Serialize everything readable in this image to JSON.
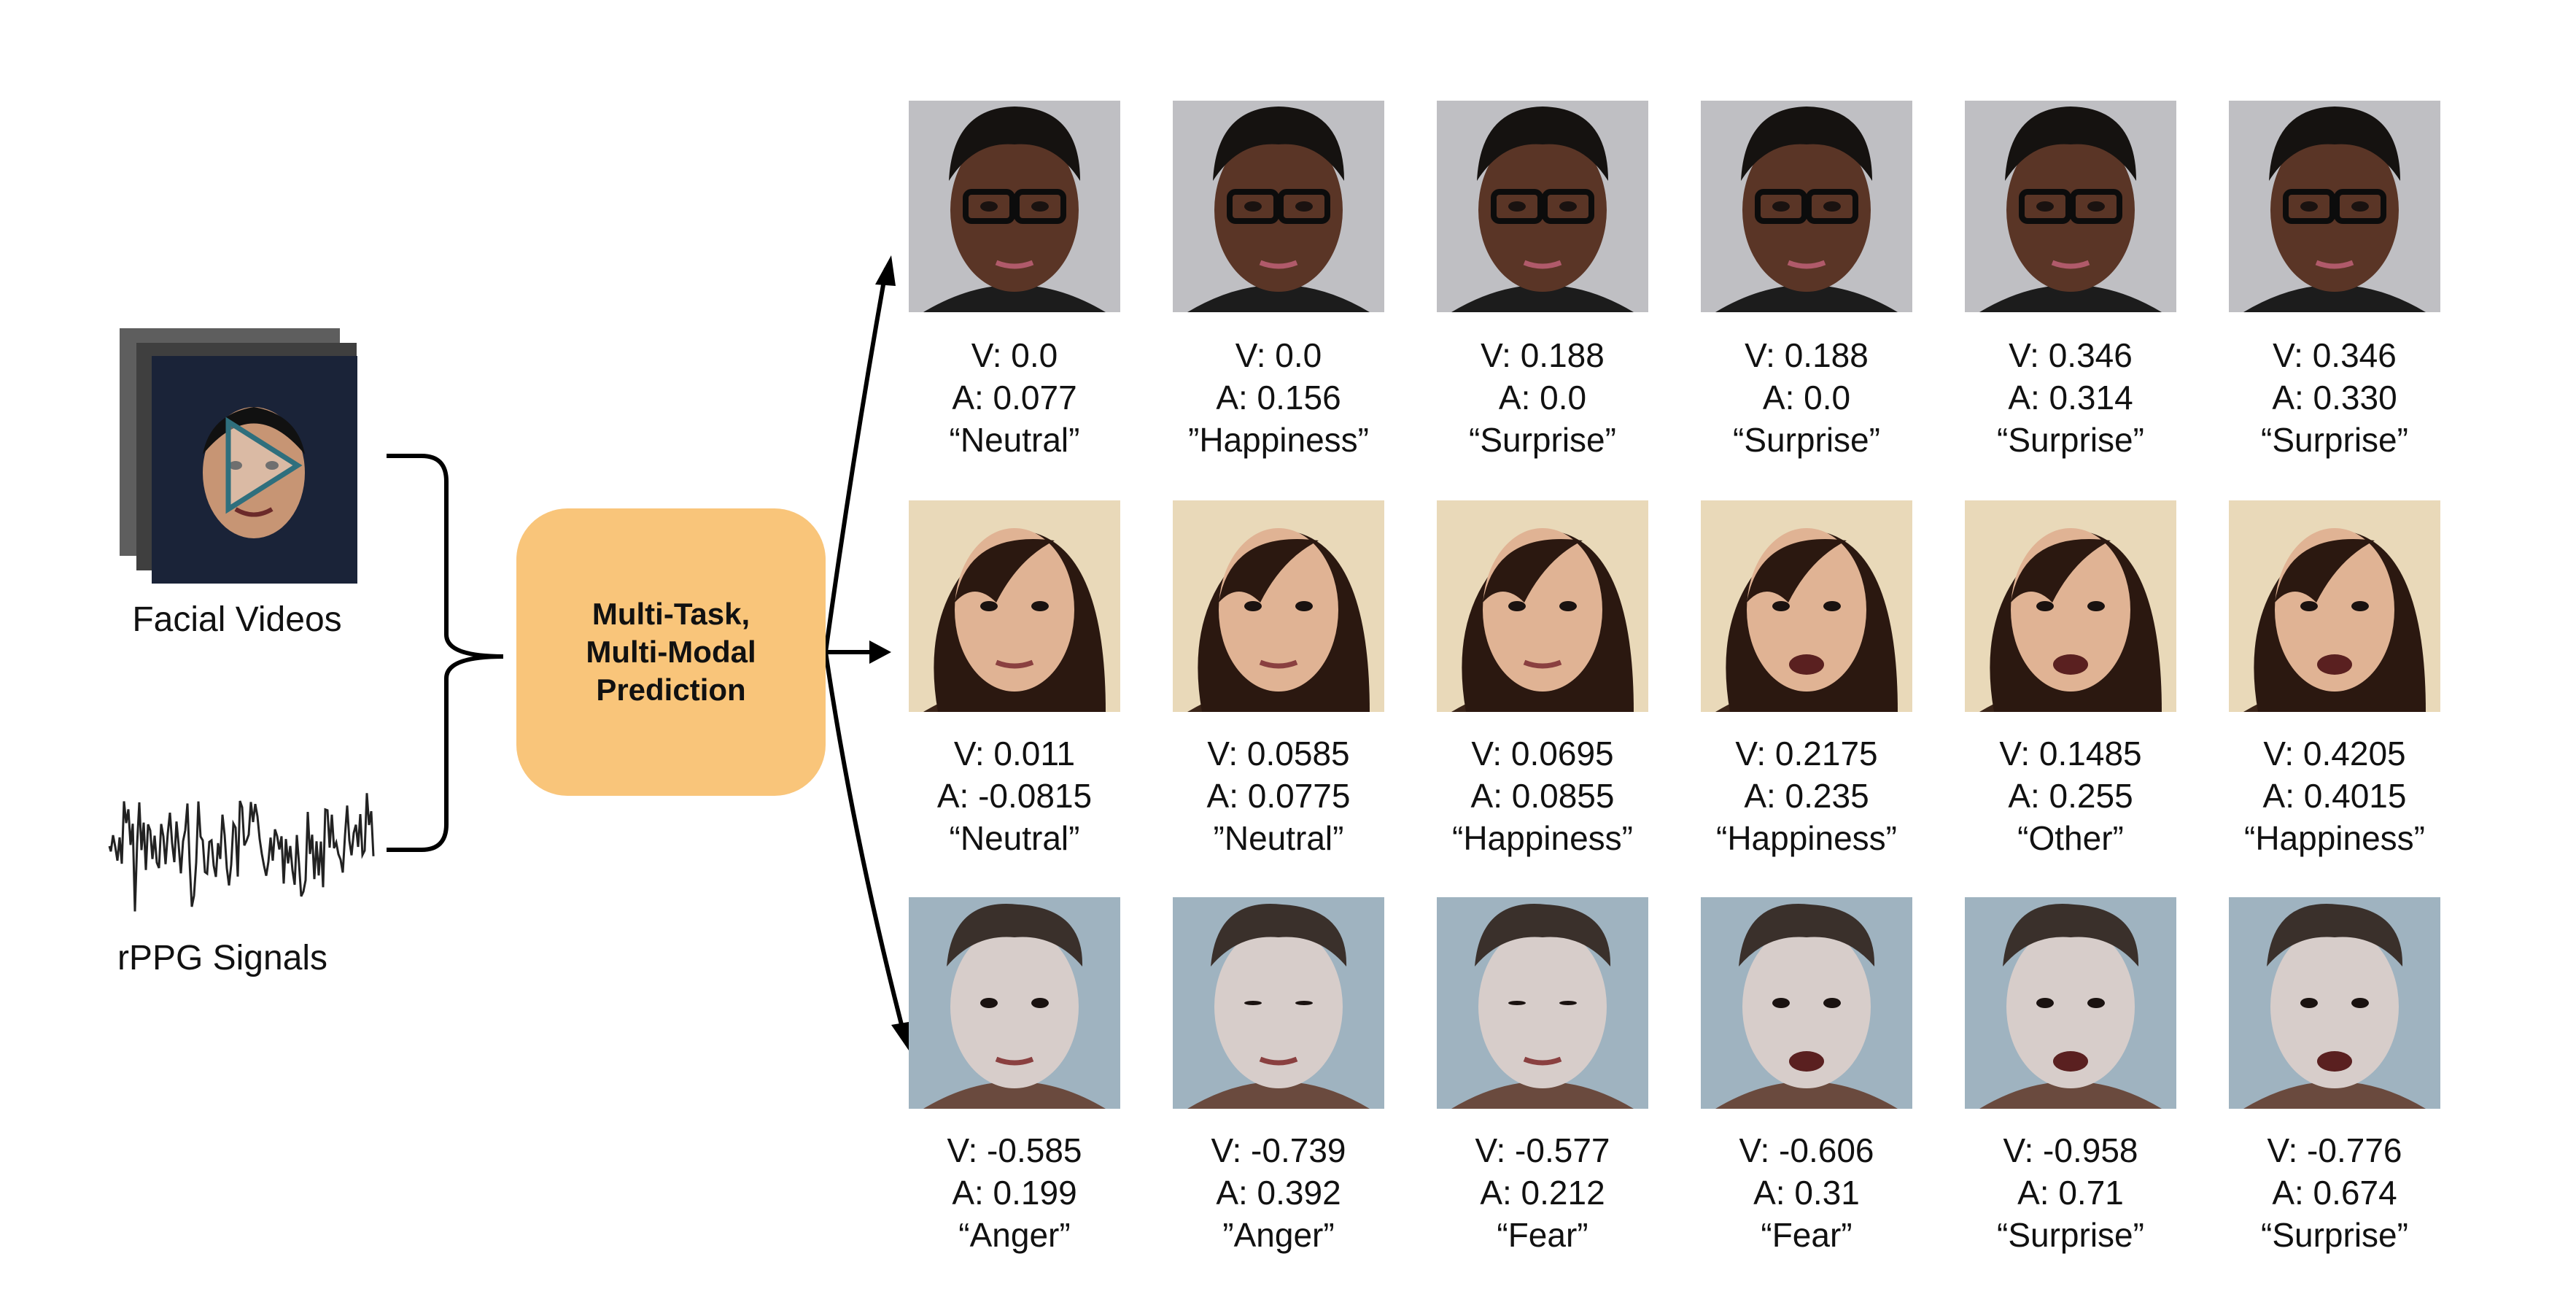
{
  "inputs": {
    "video_label": "Facial Videos",
    "signal_label": "rPPG Signals"
  },
  "center_label": "Multi-Task,\nMulti-Modal\nPrediction",
  "colors": {
    "center_box": "#f9c57a",
    "arrow": "#000000"
  },
  "rows": [
    {
      "subject": "man-with-glasses",
      "background": "#bfbfc3",
      "skin": "#5a3526",
      "hair": "#151210",
      "cells": [
        {
          "v": "V: 0.0",
          "a": "A: 0.077",
          "label": "“Neutral”"
        },
        {
          "v": "V: 0.0",
          "a": "A: 0.156",
          "label": "”Happiness”"
        },
        {
          "v": "V: 0.188",
          "a": "A: 0.0",
          "label": "“Surprise”"
        },
        {
          "v": "V: 0.188",
          "a": "A: 0.0",
          "label": "“Surprise”"
        },
        {
          "v": "V: 0.346",
          "a": "A: 0.314",
          "label": "“Surprise”"
        },
        {
          "v": "V: 0.346",
          "a": "A: 0.330",
          "label": "“Surprise”"
        }
      ]
    },
    {
      "subject": "woman-dark-hair",
      "background": "#e9d9b9",
      "skin": "#e0b394",
      "hair": "#2b1810",
      "cells": [
        {
          "v": "V: 0.011",
          "a": "A: -0.0815",
          "label": "“Neutral”"
        },
        {
          "v": "V: 0.0585",
          "a": "A: 0.0775",
          "label": "”Neutral”"
        },
        {
          "v": "V: 0.0695",
          "a": "A: 0.0855",
          "label": "“Happiness”"
        },
        {
          "v": "V: 0.2175",
          "a": "A: 0.235",
          "label": "“Happiness”"
        },
        {
          "v": "V: 0.1485",
          "a": "A: 0.255",
          "label": "“Other”"
        },
        {
          "v": "V: 0.4205",
          "a": "A: 0.4015",
          "label": "“Happiness”"
        }
      ]
    },
    {
      "subject": "young-man",
      "background": "#9fb3c0",
      "skin": "#d7cdca",
      "hair": "#3a302b",
      "cells": [
        {
          "v": "V: -0.585",
          "a": "A: 0.199",
          "label": "“Anger”"
        },
        {
          "v": "V: -0.739",
          "a": "A: 0.392",
          "label": "”Anger”"
        },
        {
          "v": "V: -0.577",
          "a": "A: 0.212",
          "label": "“Fear”"
        },
        {
          "v": "V: -0.606",
          "a": "A: 0.31",
          "label": "“Fear”"
        },
        {
          "v": "V: -0.958",
          "a": "A: 0.71",
          "label": "“Surprise”"
        },
        {
          "v": "V: -0.776",
          "a": "A: 0.674",
          "label": "“Surprise”"
        }
      ]
    }
  ]
}
